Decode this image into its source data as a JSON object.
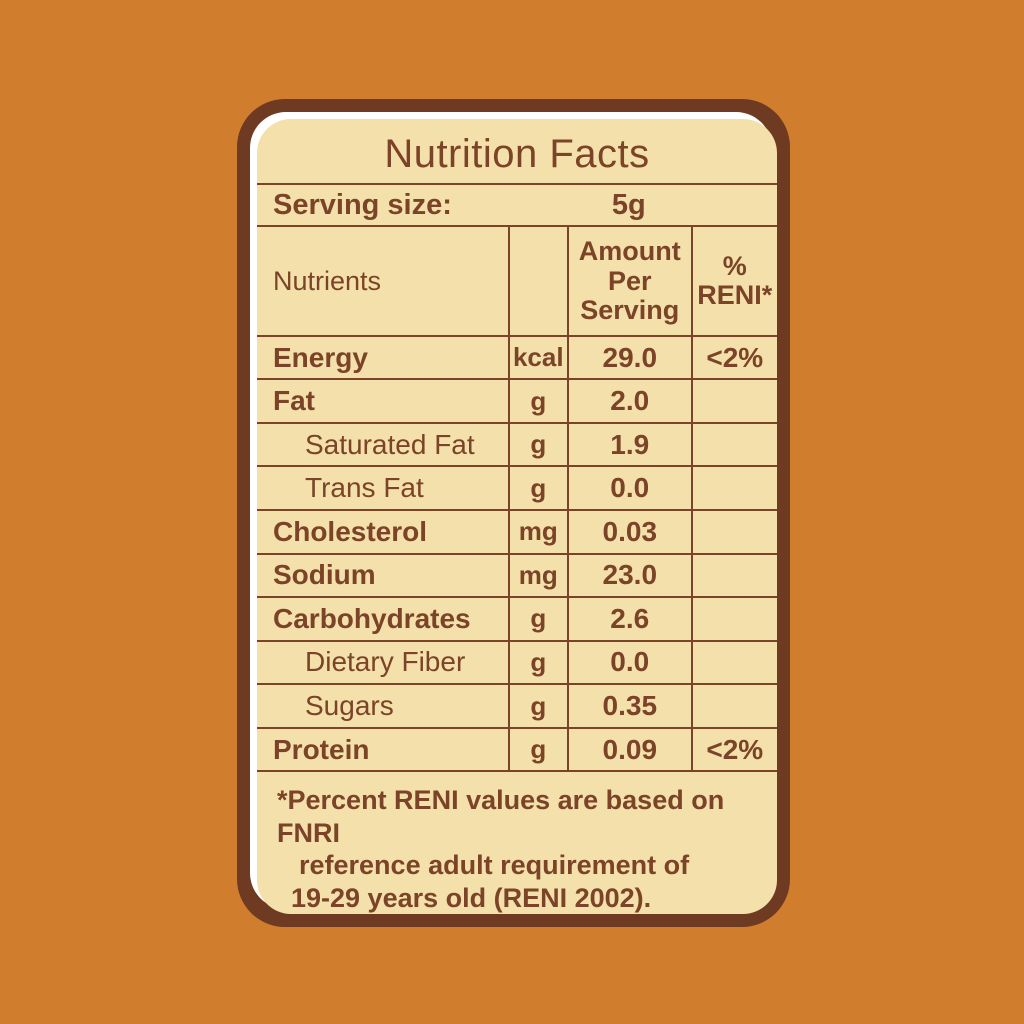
{
  "colors": {
    "background_orange": "#D07E2E",
    "card_border_brown": "#6E3A22",
    "card_fill_cream": "#F3E0AB",
    "card_highlight_white": "#FFFFFF",
    "text_brown": "#7B4327"
  },
  "title": "Nutrition Facts",
  "serving": {
    "label": "Serving size:",
    "value": "5g"
  },
  "table": {
    "header": {
      "nutrients": "Nutrients",
      "unit": "",
      "amount_lines": [
        "Amount",
        "Per",
        "Serving"
      ],
      "reni_lines": [
        "%",
        "RENI*"
      ]
    },
    "rows": [
      {
        "name": "Energy",
        "unit": "kcal",
        "amount": "29.0",
        "reni": "<2%",
        "indent": false
      },
      {
        "name": "Fat",
        "unit": "g",
        "amount": "2.0",
        "reni": "",
        "indent": false
      },
      {
        "name": "Saturated Fat",
        "unit": "g",
        "amount": "1.9",
        "reni": "",
        "indent": true
      },
      {
        "name": "Trans Fat",
        "unit": "g",
        "amount": "0.0",
        "reni": "",
        "indent": true
      },
      {
        "name": "Cholesterol",
        "unit": "mg",
        "amount": "0.03",
        "reni": "",
        "indent": false
      },
      {
        "name": "Sodium",
        "unit": "mg",
        "amount": "23.0",
        "reni": "",
        "indent": false
      },
      {
        "name": "Carbohydrates",
        "unit": "g",
        "amount": "2.6",
        "reni": "",
        "indent": false
      },
      {
        "name": "Dietary Fiber",
        "unit": "g",
        "amount": "0.0",
        "reni": "",
        "indent": true
      },
      {
        "name": "Sugars",
        "unit": "g",
        "amount": "0.35",
        "reni": "",
        "indent": true
      },
      {
        "name": "Protein",
        "unit": "g",
        "amount": "0.09",
        "reni": "<2%",
        "indent": false
      }
    ]
  },
  "footnote": {
    "lines": [
      "*Percent RENI values are based on FNRI",
      "reference adult requirement of",
      "19-29 years old (RENI 2002)."
    ]
  }
}
